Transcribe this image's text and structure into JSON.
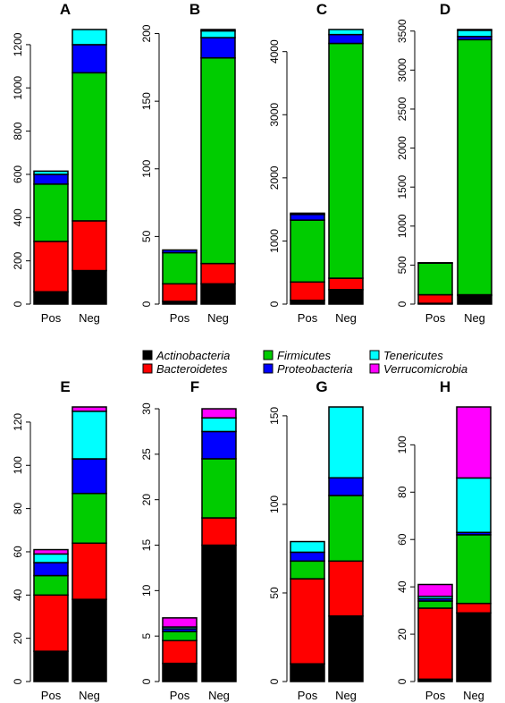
{
  "legend": {
    "entries": [
      {
        "name": "Actinobacteria",
        "color": "#000000"
      },
      {
        "name": "Bacteroidetes",
        "color": "#ff0000"
      },
      {
        "name": "Firmicutes",
        "color": "#00cc00"
      },
      {
        "name": "Proteobacteria",
        "color": "#0000ff"
      },
      {
        "name": "Tenericutes",
        "color": "#00ffff"
      },
      {
        "name": "Verrucomicrobia",
        "color": "#ff00ff"
      }
    ]
  },
  "chart_data": [
    {
      "type": "bar",
      "stacked": true,
      "title": "A",
      "categories": [
        "Pos",
        "Neg"
      ],
      "ylim": [
        0,
        1270
      ],
      "yticks": [
        0,
        200,
        400,
        600,
        800,
        1000,
        1200
      ],
      "series": [
        {
          "name": "Actinobacteria",
          "values": [
            57,
            155
          ]
        },
        {
          "name": "Bacteroidetes",
          "values": [
            233,
            230
          ]
        },
        {
          "name": "Firmicutes",
          "values": [
            265,
            685
          ]
        },
        {
          "name": "Proteobacteria",
          "values": [
            45,
            130
          ]
        },
        {
          "name": "Tenericutes",
          "values": [
            15,
            70
          ]
        },
        {
          "name": "Verrucomicrobia",
          "values": [
            0,
            0
          ]
        }
      ]
    },
    {
      "type": "bar",
      "stacked": true,
      "title": "B",
      "categories": [
        "Pos",
        "Neg"
      ],
      "ylim": [
        0,
        203
      ],
      "yticks": [
        0,
        50,
        100,
        150,
        200
      ],
      "series": [
        {
          "name": "Actinobacteria",
          "values": [
            2,
            15
          ]
        },
        {
          "name": "Bacteroidetes",
          "values": [
            13,
            15
          ]
        },
        {
          "name": "Firmicutes",
          "values": [
            23,
            152
          ]
        },
        {
          "name": "Proteobacteria",
          "values": [
            2,
            15
          ]
        },
        {
          "name": "Tenericutes",
          "values": [
            0,
            5
          ]
        },
        {
          "name": "Verrucomicrobia",
          "values": [
            0,
            1
          ]
        }
      ]
    },
    {
      "type": "bar",
      "stacked": true,
      "title": "C",
      "categories": [
        "Pos",
        "Neg"
      ],
      "ylim": [
        0,
        4350
      ],
      "yticks": [
        0,
        1000,
        2000,
        3000,
        4000
      ],
      "series": [
        {
          "name": "Actinobacteria",
          "values": [
            60,
            230
          ]
        },
        {
          "name": "Bacteroidetes",
          "values": [
            290,
            180
          ]
        },
        {
          "name": "Firmicutes",
          "values": [
            980,
            3720
          ]
        },
        {
          "name": "Proteobacteria",
          "values": [
            90,
            140
          ]
        },
        {
          "name": "Tenericutes",
          "values": [
            20,
            80
          ]
        },
        {
          "name": "Verrucomicrobia",
          "values": [
            0,
            0
          ]
        }
      ]
    },
    {
      "type": "bar",
      "stacked": true,
      "title": "D",
      "categories": [
        "Pos",
        "Neg"
      ],
      "ylim": [
        0,
        3520
      ],
      "yticks": [
        0,
        500,
        1000,
        1500,
        2000,
        2500,
        3000,
        3500
      ],
      "series": [
        {
          "name": "Actinobacteria",
          "values": [
            10,
            110
          ]
        },
        {
          "name": "Bacteroidetes",
          "values": [
            110,
            10
          ]
        },
        {
          "name": "Firmicutes",
          "values": [
            405,
            3270
          ]
        },
        {
          "name": "Proteobacteria",
          "values": [
            5,
            40
          ]
        },
        {
          "name": "Tenericutes",
          "values": [
            0,
            80
          ]
        },
        {
          "name": "Verrucomicrobia",
          "values": [
            0,
            10
          ]
        }
      ]
    },
    {
      "type": "bar",
      "stacked": true,
      "title": "E",
      "categories": [
        "Pos",
        "Neg"
      ],
      "ylim": [
        0,
        127
      ],
      "yticks": [
        0,
        20,
        40,
        60,
        80,
        100,
        120
      ],
      "series": [
        {
          "name": "Actinobacteria",
          "values": [
            14,
            38
          ]
        },
        {
          "name": "Bacteroidetes",
          "values": [
            26,
            26
          ]
        },
        {
          "name": "Firmicutes",
          "values": [
            9,
            23
          ]
        },
        {
          "name": "Proteobacteria",
          "values": [
            6,
            16
          ]
        },
        {
          "name": "Tenericutes",
          "values": [
            4,
            22
          ]
        },
        {
          "name": "Verrucomicrobia",
          "values": [
            2,
            2
          ]
        }
      ]
    },
    {
      "type": "bar",
      "stacked": true,
      "title": "F",
      "categories": [
        "Pos",
        "Neg"
      ],
      "ylim": [
        0,
        30.2
      ],
      "yticks": [
        0,
        5,
        10,
        15,
        20,
        25,
        30
      ],
      "series": [
        {
          "name": "Actinobacteria",
          "values": [
            2,
            15
          ]
        },
        {
          "name": "Bacteroidetes",
          "values": [
            2.5,
            3
          ]
        },
        {
          "name": "Firmicutes",
          "values": [
            1,
            6.5
          ]
        },
        {
          "name": "Proteobacteria",
          "values": [
            0.3,
            3
          ]
        },
        {
          "name": "Tenericutes",
          "values": [
            0.2,
            1.5
          ]
        },
        {
          "name": "Verrucomicrobia",
          "values": [
            1,
            1
          ]
        }
      ]
    },
    {
      "type": "bar",
      "stacked": true,
      "title": "G",
      "categories": [
        "Pos",
        "Neg"
      ],
      "ylim": [
        0,
        155
      ],
      "yticks": [
        0,
        50,
        100,
        150
      ],
      "series": [
        {
          "name": "Actinobacteria",
          "values": [
            10,
            37
          ]
        },
        {
          "name": "Bacteroidetes",
          "values": [
            48,
            31
          ]
        },
        {
          "name": "Firmicutes",
          "values": [
            10,
            37
          ]
        },
        {
          "name": "Proteobacteria",
          "values": [
            5,
            10
          ]
        },
        {
          "name": "Tenericutes",
          "values": [
            6,
            40
          ]
        },
        {
          "name": "Verrucomicrobia",
          "values": [
            0,
            0
          ]
        }
      ]
    },
    {
      "type": "bar",
      "stacked": true,
      "title": "H",
      "categories": [
        "Pos",
        "Neg"
      ],
      "ylim": [
        0,
        116
      ],
      "yticks": [
        0,
        20,
        40,
        60,
        80,
        100
      ],
      "series": [
        {
          "name": "Actinobacteria",
          "values": [
            1,
            29
          ]
        },
        {
          "name": "Bacteroidetes",
          "values": [
            30,
            4
          ]
        },
        {
          "name": "Firmicutes",
          "values": [
            3,
            29
          ]
        },
        {
          "name": "Proteobacteria",
          "values": [
            1,
            1
          ]
        },
        {
          "name": "Tenericutes",
          "values": [
            1,
            23
          ]
        },
        {
          "name": "Verrucomicrobia",
          "values": [
            5,
            30
          ]
        }
      ]
    }
  ]
}
